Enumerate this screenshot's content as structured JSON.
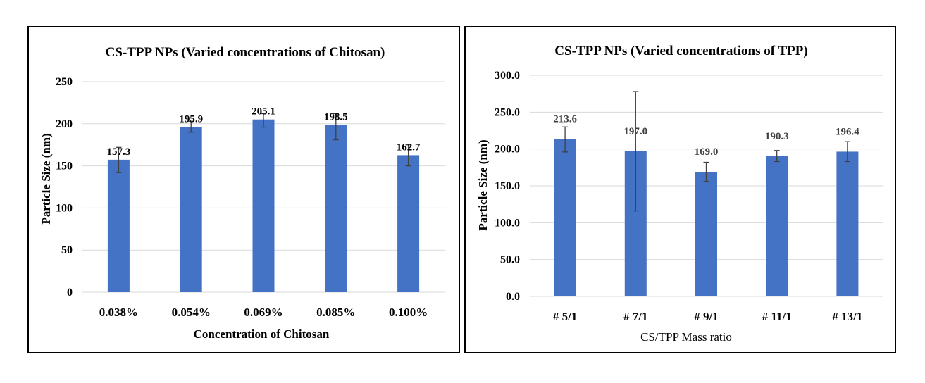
{
  "charts": {
    "styles": {
      "bar_color": "#4472C4",
      "grid_color": "#D9D9D9",
      "error_bar_color": "#404040",
      "text_color": "#000000",
      "label_color_right": "#404040",
      "grid": true,
      "legend": "none"
    }
  },
  "chart_data": [
    {
      "type": "bar",
      "title": "CS-TPP NPs (Varied concentrations of Chitosan)",
      "xlabel": "Concentration of Chitosan",
      "ylabel": "Particle Size (nm)",
      "categories": [
        "0.038%",
        "0.054%",
        "0.069%",
        "0.085%",
        "0.100%"
      ],
      "values": [
        157.3,
        195.9,
        205.1,
        198.5,
        162.7
      ],
      "value_labels": [
        "157.3",
        "195.9",
        "205.1",
        "198.5",
        "162.7"
      ],
      "error_low": [
        142,
        190,
        196,
        181,
        150
      ],
      "error_high": [
        172,
        203,
        212,
        212,
        175
      ],
      "ylim": [
        0,
        250
      ],
      "yticks": [
        0,
        50,
        100,
        150,
        200,
        250
      ],
      "ytick_labels": [
        "0",
        "50",
        "100",
        "150",
        "200",
        "250"
      ]
    },
    {
      "type": "bar",
      "title": "CS-TPP NPs (Varied concentrations of TPP)",
      "xlabel": "CS/TPP Mass ratio",
      "ylabel": "Particle Size (nm)",
      "categories": [
        "# 5/1",
        "# 7/1",
        "# 9/1",
        "# 11/1",
        "# 13/1"
      ],
      "values": [
        213.6,
        197.0,
        169.0,
        190.3,
        196.4
      ],
      "value_labels": [
        "213.6",
        "197.0",
        "169.0",
        "190.3",
        "196.4"
      ],
      "error_low": [
        196,
        116,
        156,
        183,
        183
      ],
      "error_high": [
        230,
        278,
        182,
        198,
        210
      ],
      "ylim": [
        0,
        300
      ],
      "yticks": [
        0,
        50,
        100,
        150,
        200,
        250,
        300
      ],
      "ytick_labels": [
        "0.0",
        "50.0",
        "100.0",
        "150.0",
        "200.0",
        "250.0",
        "300.0"
      ]
    }
  ]
}
